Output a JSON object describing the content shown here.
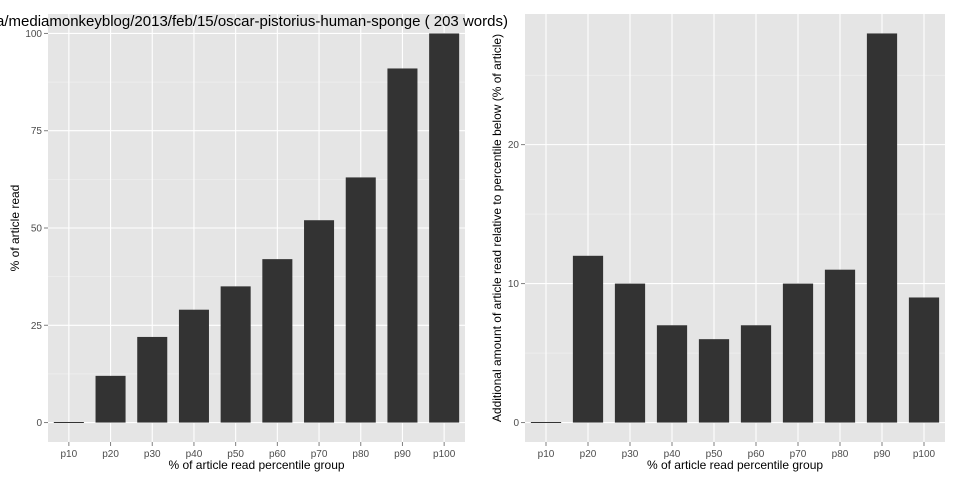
{
  "page": {
    "title": "a/mediamonkeyblog/2013/feb/15/oscar-pistorius-human-sponge ( 203 words)"
  },
  "colors": {
    "panel_background": "#e5e5e5",
    "grid_major": "#ffffff",
    "bar_fill": "#333333",
    "tick_text": "#4d4d4d"
  },
  "chart_data": [
    {
      "type": "bar",
      "title": "",
      "xlabel": "% of article read percentile group",
      "ylabel": "% of article read",
      "categories": [
        "p10",
        "p20",
        "p30",
        "p40",
        "p50",
        "p60",
        "p70",
        "p80",
        "p90",
        "p100"
      ],
      "values": [
        0,
        12,
        22,
        29,
        35,
        42,
        52,
        63,
        91,
        100
      ],
      "ylim": [
        -5,
        105
      ],
      "yticks": [
        0,
        25,
        50,
        75,
        100
      ],
      "grid": true
    },
    {
      "type": "bar",
      "title": "",
      "xlabel": "% of article read percentile group",
      "ylabel": "Additional amount of article read relative to percentile below (% of article)",
      "categories": [
        "p10",
        "p20",
        "p30",
        "p40",
        "p50",
        "p60",
        "p70",
        "p80",
        "p90",
        "p100"
      ],
      "values": [
        0,
        12,
        10,
        7,
        6,
        7,
        10,
        11,
        28,
        9
      ],
      "ylim": [
        -1.4,
        29.4
      ],
      "yticks": [
        0,
        10,
        20
      ],
      "grid": true
    }
  ]
}
